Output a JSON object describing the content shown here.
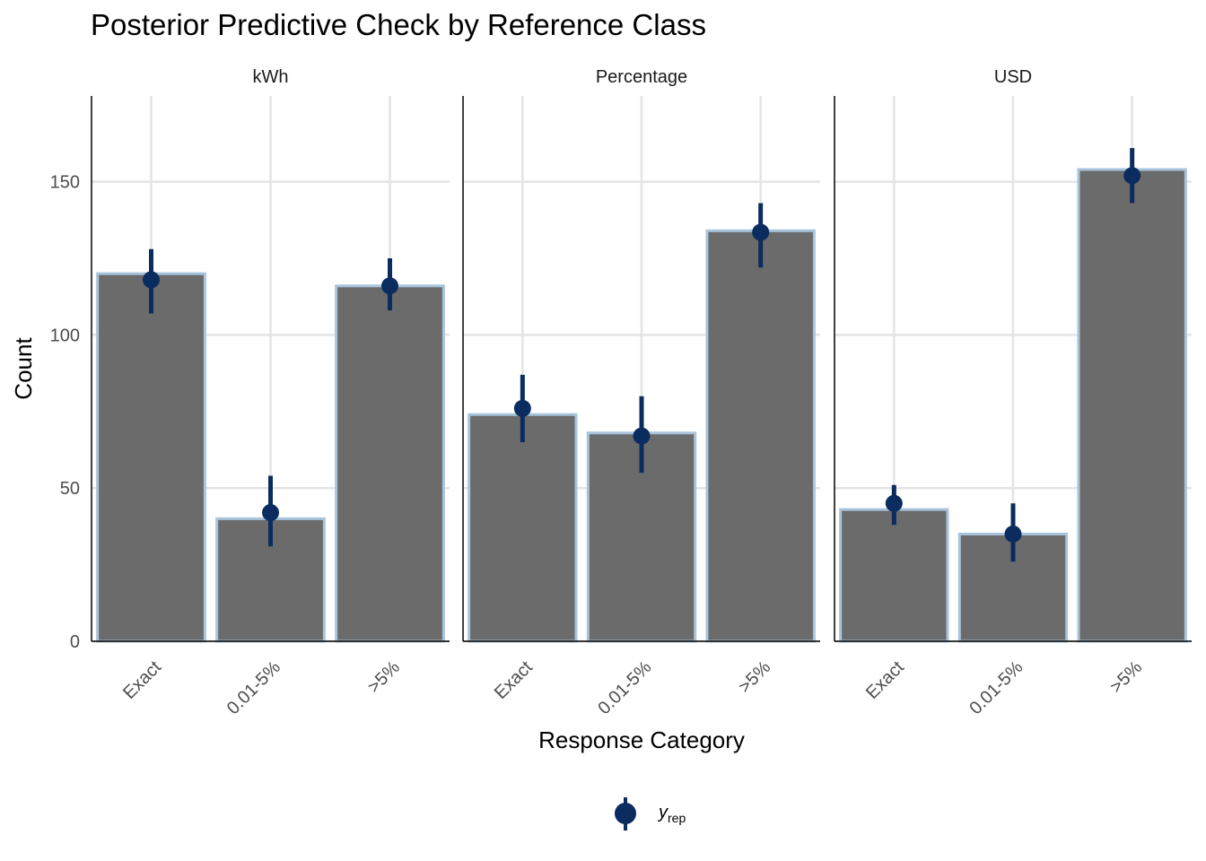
{
  "chart_data": {
    "type": "bar",
    "title": "Posterior Predictive Check by Reference Class",
    "xlabel": "Response Category",
    "ylabel": "Count",
    "categories": [
      "Exact",
      "0.01-5%",
      ">5%"
    ],
    "ylim": [
      0,
      178
    ],
    "yticks": [
      "0",
      "50",
      "100",
      "150"
    ],
    "grid": true,
    "legend_position": "bottom",
    "legend": {
      "symbol": "y",
      "subscript": "rep"
    },
    "colors": {
      "bar_fill": "#6b6b6b",
      "bar_outline": "#a8c4dc",
      "point": "#0b2c5e",
      "grid": "#e4e4e4",
      "axis": "#000000"
    },
    "facets": [
      {
        "name": "kWh",
        "observed": [
          120,
          40,
          116
        ],
        "yrep_median": [
          118,
          42,
          116
        ],
        "yrep_lower": [
          107,
          31,
          108
        ],
        "yrep_upper": [
          128,
          54,
          125
        ]
      },
      {
        "name": "Percentage",
        "observed": [
          74,
          68,
          134
        ],
        "yrep_median": [
          76,
          67,
          133.5
        ],
        "yrep_lower": [
          65,
          55,
          122
        ],
        "yrep_upper": [
          87,
          80,
          143
        ]
      },
      {
        "name": "USD",
        "observed": [
          43,
          35,
          154
        ],
        "yrep_median": [
          45,
          35,
          152
        ],
        "yrep_lower": [
          38,
          26,
          143
        ],
        "yrep_upper": [
          51,
          45,
          161
        ]
      }
    ]
  }
}
